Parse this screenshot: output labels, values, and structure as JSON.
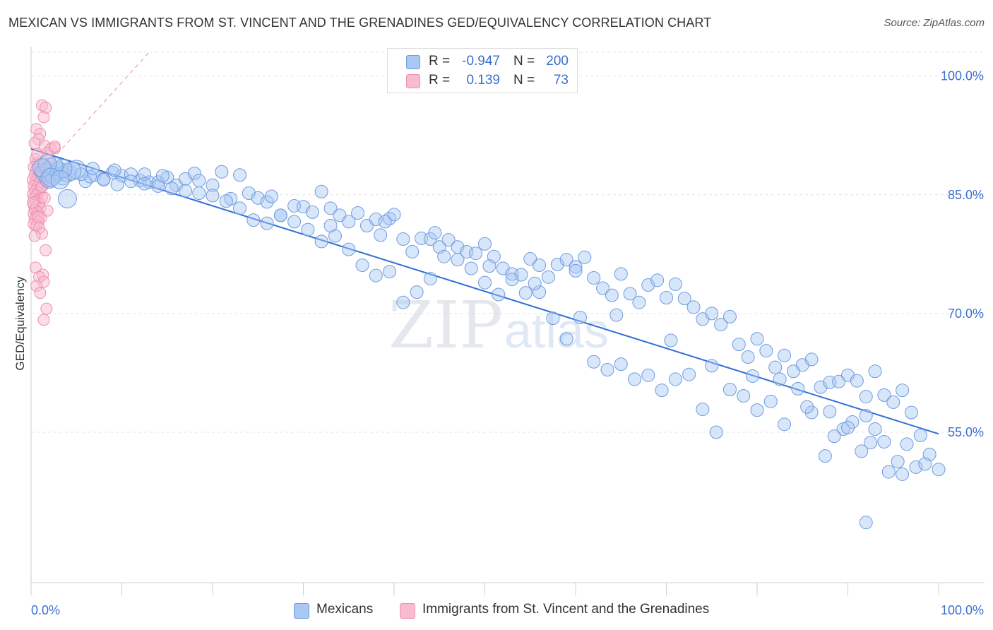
{
  "header": {
    "title": "MEXICAN VS IMMIGRANTS FROM ST. VINCENT AND THE GRENADINES GED/EQUIVALENCY CORRELATION CHART",
    "source": "Source: ZipAtlas.com"
  },
  "watermark": {
    "zip": "ZIP",
    "atlas": "atlas"
  },
  "legend": {
    "rows": [
      {
        "r_label": "R =",
        "r_value": "-0.947",
        "n_label": "N =",
        "n_value": "200",
        "color": "#a9c8f2",
        "border": "#6f9be0"
      },
      {
        "r_label": "R =",
        "r_value": "0.139",
        "n_label": "N =",
        "n_value": "73",
        "color": "#f8bcd0",
        "border": "#ee8fae"
      }
    ]
  },
  "bottom_legend": {
    "items": [
      {
        "label": "Mexicans",
        "color": "#a9c8f2",
        "border": "#6f9be0"
      },
      {
        "label": "Immigrants from St. Vincent and the Grenadines",
        "color": "#f8bcd0",
        "border": "#ee8fae"
      }
    ]
  },
  "chart_data": {
    "type": "scatter",
    "ylabel": "GED/Equivalency",
    "xlim": [
      0,
      100
    ],
    "ylim": [
      36,
      103
    ],
    "x_tick_labels": [
      "0.0%",
      "100.0%"
    ],
    "y_ticks": [
      {
        "value": 100,
        "label": "100.0%"
      },
      {
        "value": 85,
        "label": "85.0%"
      },
      {
        "value": 70,
        "label": "70.0%"
      },
      {
        "value": 55,
        "label": "55.0%"
      }
    ],
    "grid": true,
    "colors": {
      "blue_fill": "#a9c8f2",
      "blue_stroke": "#6f9be0",
      "blue_line": "#2f6fd6",
      "pink_fill": "#f8bcd0",
      "pink_stroke": "#ee8fae",
      "pink_line": "#f19ab7"
    },
    "series": [
      {
        "name": "Mexicans",
        "color": "#a9c8f2",
        "trend": {
          "x": [
            0,
            100
          ],
          "y": [
            90.8,
            54.8
          ]
        },
        "points": [
          [
            1.5,
            87.8
          ],
          [
            2.0,
            87.0
          ],
          [
            2.5,
            87.5
          ],
          [
            3.0,
            88.0
          ],
          [
            3.5,
            87.4
          ],
          [
            4.0,
            87.8
          ],
          [
            5.0,
            88.2
          ],
          [
            4.0,
            84.5
          ],
          [
            6.0,
            86.7
          ],
          [
            7.0,
            87.5
          ],
          [
            8.0,
            87.0
          ],
          [
            9.0,
            87.8
          ],
          [
            10.0,
            87.4
          ],
          [
            11.0,
            87.6
          ],
          [
            12.0,
            86.8
          ],
          [
            13.0,
            86.6
          ],
          [
            14.0,
            86.6
          ],
          [
            15.0,
            87.2
          ],
          [
            16.0,
            86.2
          ],
          [
            12.5,
            87.6
          ],
          [
            17.0,
            87.0
          ],
          [
            18.0,
            87.7
          ],
          [
            18.5,
            86.8
          ],
          [
            20.0,
            86.2
          ],
          [
            22.0,
            84.5
          ],
          [
            23.0,
            87.5
          ],
          [
            24.0,
            85.2
          ],
          [
            25.0,
            84.6
          ],
          [
            26.0,
            84.1
          ],
          [
            27.5,
            82.4
          ],
          [
            29.0,
            83.6
          ],
          [
            30.0,
            83.5
          ],
          [
            31.0,
            82.8
          ],
          [
            32.0,
            85.4
          ],
          [
            33.0,
            83.3
          ],
          [
            34.0,
            82.4
          ],
          [
            35.0,
            81.6
          ],
          [
            36.0,
            82.7
          ],
          [
            37.0,
            81.1
          ],
          [
            38.0,
            81.9
          ],
          [
            38.5,
            79.9
          ],
          [
            39.5,
            82.0
          ],
          [
            40.0,
            82.5
          ],
          [
            41.0,
            79.4
          ],
          [
            42.0,
            77.8
          ],
          [
            43.0,
            79.5
          ],
          [
            44.0,
            79.4
          ],
          [
            45.0,
            78.4
          ],
          [
            46.0,
            79.3
          ],
          [
            47.0,
            78.4
          ],
          [
            48.0,
            77.8
          ],
          [
            49.0,
            77.6
          ],
          [
            50.0,
            78.8
          ],
          [
            51.0,
            77.2
          ],
          [
            52.0,
            75.7
          ],
          [
            53.0,
            75.0
          ],
          [
            54.0,
            74.9
          ],
          [
            55.0,
            76.9
          ],
          [
            56.0,
            76.1
          ],
          [
            57.0,
            74.6
          ],
          [
            58.0,
            76.2
          ],
          [
            59.0,
            76.8
          ],
          [
            60.0,
            75.9
          ],
          [
            61.0,
            77.1
          ],
          [
            62.0,
            74.5
          ],
          [
            63.0,
            73.2
          ],
          [
            64.0,
            72.3
          ],
          [
            65.0,
            75.0
          ],
          [
            66.0,
            72.5
          ],
          [
            67.0,
            71.4
          ],
          [
            68.0,
            73.6
          ],
          [
            69.0,
            74.2
          ],
          [
            70.0,
            72.0
          ],
          [
            71.0,
            73.7
          ],
          [
            72.0,
            71.9
          ],
          [
            73.0,
            70.8
          ],
          [
            74.0,
            69.3
          ],
          [
            75.0,
            70.0
          ],
          [
            76.0,
            68.6
          ],
          [
            77.0,
            69.6
          ],
          [
            78.0,
            66.1
          ],
          [
            79.0,
            64.5
          ],
          [
            80.0,
            66.8
          ],
          [
            81.0,
            65.3
          ],
          [
            82.0,
            63.2
          ],
          [
            83.0,
            64.7
          ],
          [
            84.0,
            62.7
          ],
          [
            85.0,
            63.5
          ],
          [
            86.0,
            64.2
          ],
          [
            87.0,
            60.7
          ],
          [
            88.0,
            61.3
          ],
          [
            89.0,
            61.4
          ],
          [
            90.0,
            62.2
          ],
          [
            91.0,
            61.5
          ],
          [
            92.0,
            59.5
          ],
          [
            93.0,
            62.7
          ],
          [
            94.0,
            59.7
          ],
          [
            95.0,
            58.8
          ],
          [
            96.0,
            60.3
          ],
          [
            97.0,
            57.5
          ],
          [
            98.0,
            54.6
          ],
          [
            99.0,
            52.2
          ],
          [
            100.0,
            50.3
          ],
          [
            97.5,
            50.6
          ],
          [
            96.5,
            53.5
          ],
          [
            95.5,
            51.3
          ],
          [
            94.5,
            50.0
          ],
          [
            93.0,
            55.4
          ],
          [
            92.0,
            57.1
          ],
          [
            91.5,
            52.6
          ],
          [
            90.5,
            56.3
          ],
          [
            89.5,
            55.4
          ],
          [
            88.5,
            54.5
          ],
          [
            87.5,
            52.0
          ],
          [
            86.0,
            57.5
          ],
          [
            84.5,
            60.5
          ],
          [
            83.0,
            56.0
          ],
          [
            81.5,
            58.9
          ],
          [
            80.0,
            57.8
          ],
          [
            78.5,
            59.6
          ],
          [
            77.0,
            60.4
          ],
          [
            75.5,
            55.0
          ],
          [
            74.0,
            57.9
          ],
          [
            72.5,
            62.3
          ],
          [
            71.0,
            61.7
          ],
          [
            69.5,
            60.3
          ],
          [
            68.0,
            62.2
          ],
          [
            66.5,
            61.7
          ],
          [
            65.0,
            63.6
          ],
          [
            63.5,
            62.9
          ],
          [
            62.0,
            63.9
          ],
          [
            60.5,
            69.5
          ],
          [
            59.0,
            66.8
          ],
          [
            57.5,
            69.4
          ],
          [
            56.0,
            72.7
          ],
          [
            54.5,
            72.6
          ],
          [
            53.0,
            74.3
          ],
          [
            51.5,
            72.4
          ],
          [
            50.0,
            73.9
          ],
          [
            48.5,
            75.7
          ],
          [
            47.0,
            76.8
          ],
          [
            45.5,
            77.2
          ],
          [
            44.0,
            74.4
          ],
          [
            42.5,
            72.7
          ],
          [
            41.0,
            71.4
          ],
          [
            39.5,
            75.3
          ],
          [
            38.0,
            74.8
          ],
          [
            36.5,
            76.1
          ],
          [
            35.0,
            78.1
          ],
          [
            33.5,
            79.8
          ],
          [
            32.0,
            79.1
          ],
          [
            30.5,
            80.6
          ],
          [
            29.0,
            81.6
          ],
          [
            27.5,
            82.4
          ],
          [
            26.0,
            81.4
          ],
          [
            24.5,
            81.8
          ],
          [
            23.0,
            83.3
          ],
          [
            21.5,
            84.2
          ],
          [
            20.0,
            84.9
          ],
          [
            18.5,
            85.2
          ],
          [
            17.0,
            85.5
          ],
          [
            15.5,
            85.8
          ],
          [
            14.0,
            86.1
          ],
          [
            12.5,
            86.4
          ],
          [
            11.0,
            86.7
          ],
          [
            9.5,
            86.3
          ],
          [
            8.0,
            86.9
          ],
          [
            6.5,
            87.3
          ],
          [
            5.5,
            87.6
          ],
          [
            4.5,
            88.0
          ],
          [
            3.5,
            88.3
          ],
          [
            2.5,
            88.6
          ],
          [
            1.8,
            88.9
          ],
          [
            1.2,
            88.4
          ],
          [
            2.2,
            87.2
          ],
          [
            3.2,
            86.9
          ],
          [
            6.8,
            88.3
          ],
          [
            9.2,
            88.1
          ],
          [
            14.5,
            87.4
          ],
          [
            21.0,
            87.9
          ],
          [
            26.5,
            84.8
          ],
          [
            33.0,
            81.1
          ],
          [
            39.0,
            81.6
          ],
          [
            44.5,
            80.2
          ],
          [
            50.5,
            76.0
          ],
          [
            55.5,
            73.8
          ],
          [
            60.0,
            75.4
          ],
          [
            64.5,
            69.8
          ],
          [
            70.5,
            66.6
          ],
          [
            75.0,
            63.4
          ],
          [
            79.5,
            62.1
          ],
          [
            82.5,
            61.7
          ],
          [
            85.5,
            58.2
          ],
          [
            88.0,
            57.6
          ],
          [
            90.0,
            55.6
          ],
          [
            92.5,
            53.7
          ],
          [
            94.0,
            53.8
          ],
          [
            96.0,
            49.7
          ],
          [
            98.5,
            51.0
          ],
          [
            92.0,
            43.6
          ]
        ]
      },
      {
        "name": "Immigrants from St. Vincent and the Grenadines",
        "color": "#f8bcd0",
        "trend": {
          "x": [
            0,
            13
          ],
          "y": [
            86.5,
            103
          ]
        },
        "points": [
          [
            1.2,
            96.3
          ],
          [
            1.6,
            96.0
          ],
          [
            1.4,
            94.8
          ],
          [
            0.6,
            93.3
          ],
          [
            1.0,
            92.7
          ],
          [
            0.8,
            92.0
          ],
          [
            0.4,
            91.5
          ],
          [
            1.5,
            91.2
          ],
          [
            2.2,
            90.8
          ],
          [
            2.6,
            90.9
          ],
          [
            1.8,
            90.3
          ],
          [
            0.5,
            89.5
          ],
          [
            0.7,
            89.0
          ],
          [
            1.0,
            88.7
          ],
          [
            0.3,
            88.5
          ],
          [
            0.6,
            88.2
          ],
          [
            0.9,
            87.9
          ],
          [
            1.3,
            87.7
          ],
          [
            0.4,
            87.5
          ],
          [
            0.8,
            87.3
          ],
          [
            1.1,
            87.1
          ],
          [
            0.2,
            86.9
          ],
          [
            0.5,
            86.7
          ],
          [
            0.9,
            86.5
          ],
          [
            1.4,
            86.3
          ],
          [
            0.3,
            86.1
          ],
          [
            0.7,
            85.9
          ],
          [
            1.0,
            85.7
          ],
          [
            0.4,
            85.5
          ],
          [
            0.8,
            85.3
          ],
          [
            0.2,
            85.1
          ],
          [
            0.6,
            84.9
          ],
          [
            1.2,
            84.7
          ],
          [
            0.3,
            84.5
          ],
          [
            0.7,
            84.3
          ],
          [
            0.5,
            84.1
          ],
          [
            0.9,
            83.9
          ],
          [
            0.3,
            83.7
          ],
          [
            0.6,
            83.5
          ],
          [
            1.0,
            83.3
          ],
          [
            0.4,
            83.1
          ],
          [
            1.8,
            83.0
          ],
          [
            0.7,
            82.8
          ],
          [
            0.3,
            82.6
          ],
          [
            0.6,
            82.3
          ],
          [
            1.1,
            82.1
          ],
          [
            0.4,
            81.9
          ],
          [
            0.8,
            81.6
          ],
          [
            0.3,
            81.3
          ],
          [
            0.6,
            81.1
          ],
          [
            0.9,
            80.8
          ],
          [
            1.2,
            80.1
          ],
          [
            0.4,
            79.8
          ],
          [
            1.6,
            78.0
          ],
          [
            0.5,
            75.8
          ],
          [
            1.3,
            74.9
          ],
          [
            0.9,
            74.6
          ],
          [
            1.4,
            74.0
          ],
          [
            0.6,
            73.5
          ],
          [
            1.0,
            72.6
          ],
          [
            1.7,
            70.6
          ],
          [
            1.4,
            69.2
          ],
          [
            2.6,
            91.1
          ],
          [
            2.1,
            88.9
          ],
          [
            1.9,
            88.4
          ],
          [
            0.7,
            90.1
          ],
          [
            1.5,
            87.0
          ],
          [
            2.3,
            87.4
          ],
          [
            1.2,
            86.0
          ],
          [
            1.9,
            86.8
          ],
          [
            0.2,
            84.0
          ],
          [
            0.8,
            82.2
          ],
          [
            1.5,
            84.6
          ]
        ]
      }
    ]
  }
}
